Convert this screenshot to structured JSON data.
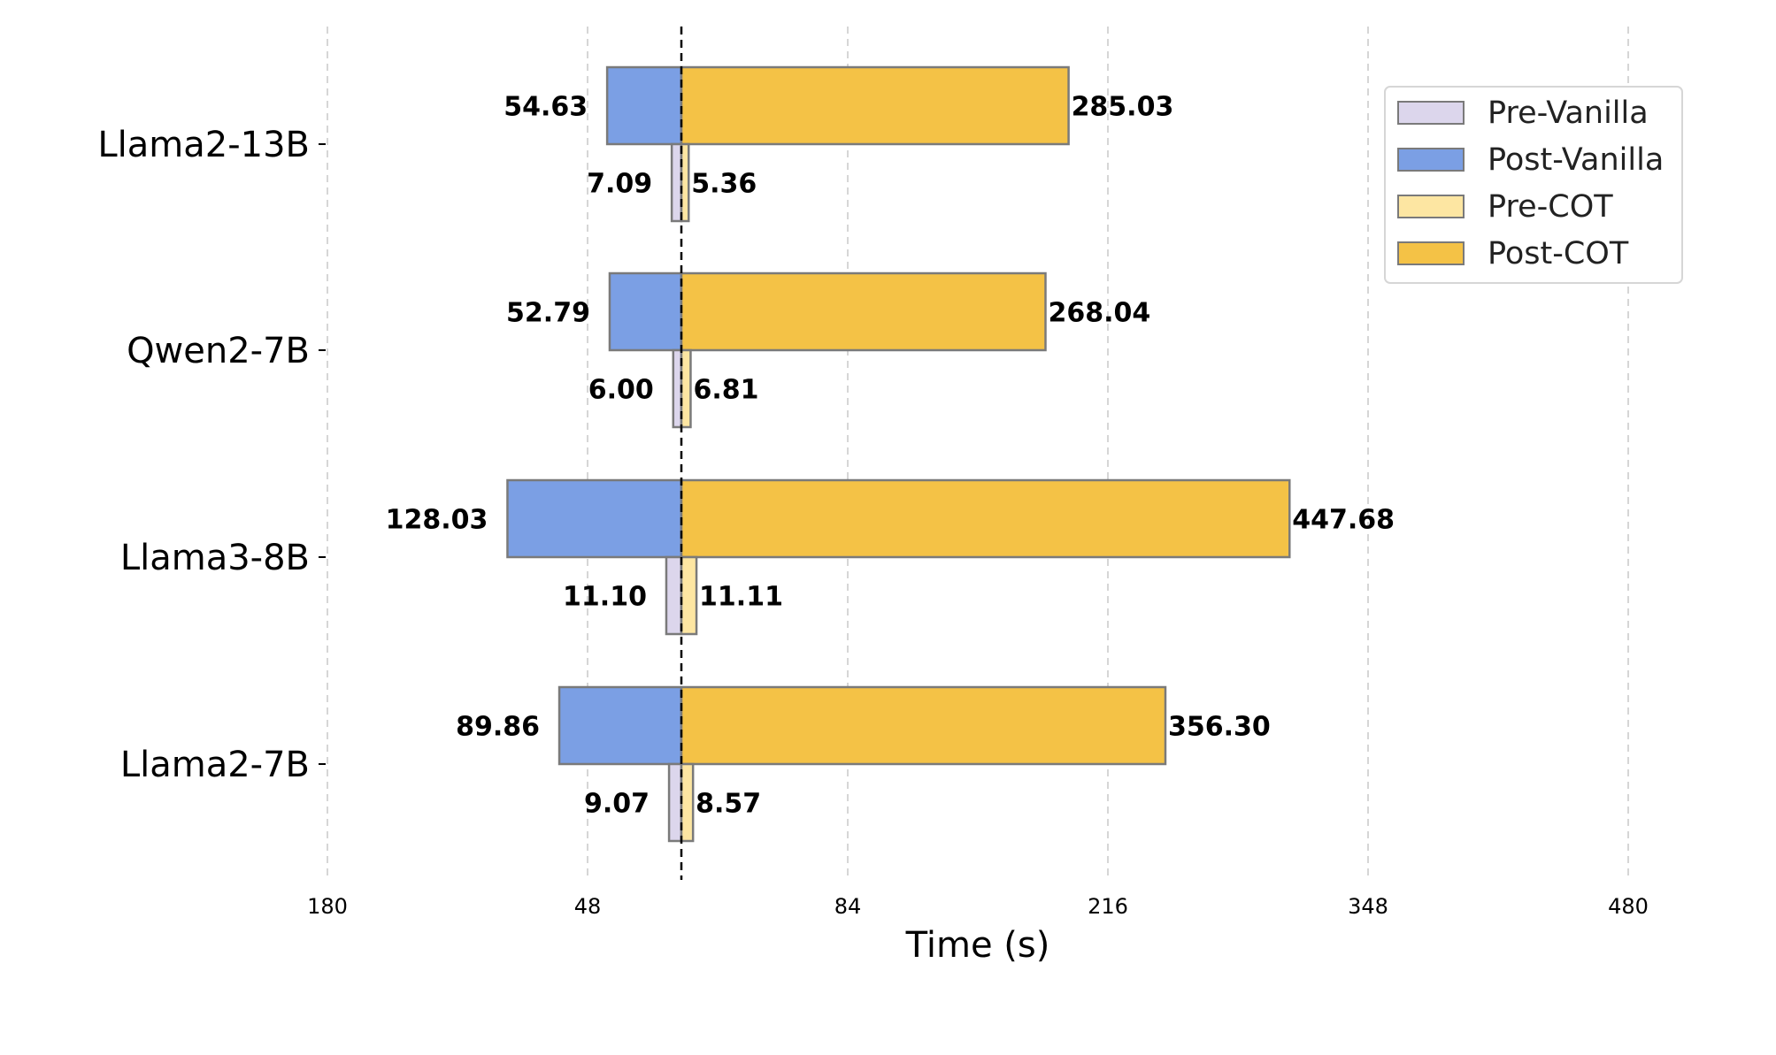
{
  "chart_data": {
    "type": "bar",
    "orientation": "horizontal-diverging",
    "xlabel": "Time (s)",
    "categories": [
      "Llama2-13B",
      "Qwen2-7B",
      "Llama3-8B",
      "Llama2-7B"
    ],
    "x_tick_labels": [
      "180",
      "48",
      "84",
      "216",
      "348",
      "480"
    ],
    "legend_position": "top-right",
    "grid": true,
    "series": [
      {
        "name": "Pre-Vanilla",
        "side": "left",
        "color": "#dcd6ec",
        "values": [
          7.09,
          6.0,
          11.1,
          9.07
        ]
      },
      {
        "name": "Post-Vanilla",
        "side": "left",
        "color": "#7b9fe4",
        "values": [
          54.63,
          52.79,
          128.03,
          89.86
        ]
      },
      {
        "name": "Pre-COT",
        "side": "right",
        "color": "#fde6a2",
        "values": [
          5.36,
          6.81,
          11.11,
          8.57
        ]
      },
      {
        "name": "Post-COT",
        "side": "right",
        "color": "#f4c246",
        "values": [
          285.03,
          268.04,
          447.68,
          356.3
        ]
      }
    ],
    "value_labels": {
      "Pre-Vanilla": [
        "7.09",
        "6.00",
        "11.10",
        "9.07"
      ],
      "Post-Vanilla": [
        "54.63",
        "52.79",
        "128.03",
        "89.86"
      ],
      "Pre-COT": [
        "5.36",
        "6.81",
        "11.11",
        "8.57"
      ],
      "Post-COT": [
        "285.03",
        "268.04",
        "447.68",
        "356.30"
      ]
    }
  }
}
